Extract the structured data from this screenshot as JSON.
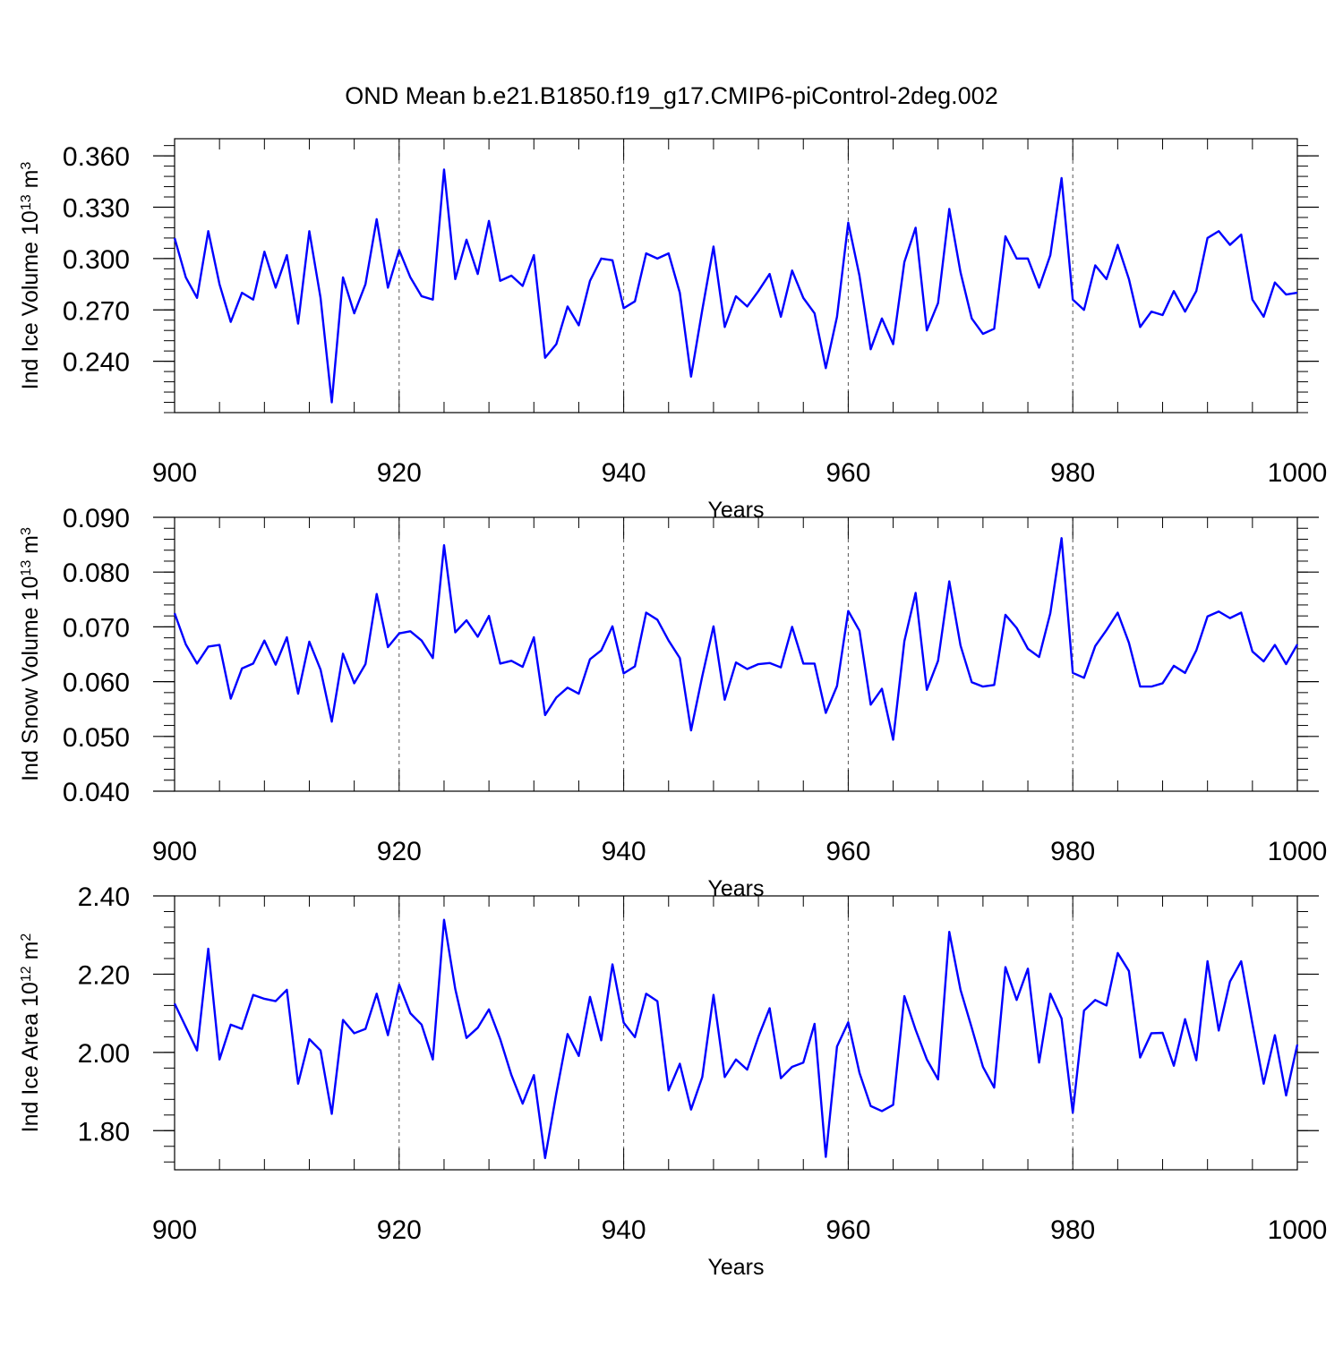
{
  "title": "OND Mean b.e21.B1850.f19_g17.CMIP6-piControl-2deg.002",
  "colors": {
    "line": "#0000ff",
    "axes": "#000000",
    "refline": "#555555"
  },
  "chart_data": [
    {
      "type": "line",
      "xlabel": "Years",
      "ylabel": {
        "base": "Ind Ice Volume 10",
        "exp1": "13",
        "unit": " m",
        "exp2": "3"
      },
      "xlim": [
        900,
        1000
      ],
      "ylim": [
        0.21,
        0.37
      ],
      "xticks": [
        900,
        920,
        940,
        960,
        980,
        1000
      ],
      "xtick_labels": [
        "900",
        "920",
        "940",
        "960",
        "980",
        "1000"
      ],
      "yticks": [
        0.24,
        0.27,
        0.3,
        0.33,
        0.36
      ],
      "ytick_labels": [
        "0.240",
        "0.270",
        "0.300",
        "0.330",
        "0.360"
      ],
      "ref_lines_x": [
        920,
        940,
        960,
        980
      ],
      "x_start": 900,
      "values": [
        0.312,
        0.289,
        0.277,
        0.316,
        0.285,
        0.263,
        0.28,
        0.276,
        0.304,
        0.283,
        0.302,
        0.262,
        0.316,
        0.277,
        0.216,
        0.289,
        0.268,
        0.285,
        0.323,
        0.283,
        0.305,
        0.289,
        0.278,
        0.276,
        0.352,
        0.288,
        0.311,
        0.291,
        0.322,
        0.287,
        0.29,
        0.284,
        0.302,
        0.242,
        0.25,
        0.272,
        0.261,
        0.287,
        0.3,
        0.299,
        0.271,
        0.275,
        0.303,
        0.3,
        0.303,
        0.28,
        0.231,
        0.27,
        0.307,
        0.26,
        0.278,
        0.272,
        0.281,
        0.291,
        0.266,
        0.293,
        0.277,
        0.268,
        0.236,
        0.266,
        0.321,
        0.29,
        0.247,
        0.265,
        0.25,
        0.298,
        0.318,
        0.258,
        0.274,
        0.329,
        0.292,
        0.265,
        0.256,
        0.259,
        0.313,
        0.3,
        0.3,
        0.283,
        0.302,
        0.347,
        0.276,
        0.27,
        0.296,
        0.288,
        0.308,
        0.288,
        0.26,
        0.269,
        0.267,
        0.281,
        0.269,
        0.281,
        0.312,
        0.316,
        0.308,
        0.314,
        0.276,
        0.266,
        0.286,
        0.279,
        0.28
      ]
    },
    {
      "type": "line",
      "xlabel": "Years",
      "ylabel": {
        "base": "Ind Snow Volume 10",
        "exp1": "13",
        "unit": " m",
        "exp2": "3"
      },
      "xlim": [
        900,
        1000
      ],
      "ylim": [
        0.04,
        0.09
      ],
      "xticks": [
        900,
        920,
        940,
        960,
        980,
        1000
      ],
      "xtick_labels": [
        "900",
        "920",
        "940",
        "960",
        "980",
        "1000"
      ],
      "yticks": [
        0.04,
        0.05,
        0.06,
        0.07,
        0.08,
        0.09
      ],
      "ytick_labels": [
        "0.040",
        "0.050",
        "0.060",
        "0.070",
        "0.080",
        "0.090"
      ],
      "ref_lines_x": [
        920,
        940,
        960,
        980
      ],
      "x_start": 900,
      "values": [
        0.0725,
        0.0668,
        0.0633,
        0.0664,
        0.0667,
        0.0569,
        0.0624,
        0.0633,
        0.0675,
        0.0631,
        0.0681,
        0.0578,
        0.0673,
        0.0622,
        0.0527,
        0.0651,
        0.0597,
        0.0632,
        0.076,
        0.0663,
        0.0688,
        0.0692,
        0.0675,
        0.0643,
        0.0849,
        0.069,
        0.0712,
        0.0682,
        0.072,
        0.0633,
        0.0638,
        0.0627,
        0.0681,
        0.0539,
        0.0571,
        0.0589,
        0.0578,
        0.0641,
        0.0657,
        0.0701,
        0.0615,
        0.0628,
        0.0726,
        0.0713,
        0.0675,
        0.0643,
        0.0511,
        0.061,
        0.0701,
        0.0567,
        0.0635,
        0.0623,
        0.0632,
        0.0634,
        0.0626,
        0.07,
        0.0633,
        0.0633,
        0.0543,
        0.0592,
        0.0729,
        0.0693,
        0.0558,
        0.0587,
        0.0494,
        0.0674,
        0.0762,
        0.0585,
        0.0638,
        0.0783,
        0.0666,
        0.0599,
        0.0591,
        0.0594,
        0.0722,
        0.0698,
        0.066,
        0.0645,
        0.0725,
        0.0862,
        0.0616,
        0.0607,
        0.0665,
        0.0694,
        0.0726,
        0.0671,
        0.0591,
        0.0591,
        0.0597,
        0.0629,
        0.0616,
        0.0657,
        0.0719,
        0.0728,
        0.0716,
        0.0726,
        0.0655,
        0.0637,
        0.0667,
        0.0632,
        0.0668
      ]
    },
    {
      "type": "line",
      "xlabel": "Years",
      "ylabel": {
        "base": "Ind Ice Area 10",
        "exp1": "12",
        "unit": " m",
        "exp2": "2"
      },
      "xlim": [
        900,
        1000
      ],
      "ylim": [
        1.7,
        2.4
      ],
      "xticks": [
        900,
        920,
        940,
        960,
        980,
        1000
      ],
      "xtick_labels": [
        "900",
        "920",
        "940",
        "960",
        "980",
        "1000"
      ],
      "yticks": [
        1.8,
        2.0,
        2.2,
        2.4
      ],
      "ytick_labels": [
        "1.80",
        "2.00",
        "2.20",
        "2.40"
      ],
      "ref_lines_x": [
        920,
        940,
        960,
        980
      ],
      "x_start": 900,
      "values": [
        2.125,
        2.065,
        2.005,
        2.265,
        1.982,
        2.071,
        2.06,
        2.147,
        2.137,
        2.131,
        2.16,
        1.92,
        2.034,
        2.005,
        1.843,
        2.083,
        2.049,
        2.06,
        2.15,
        2.044,
        2.173,
        2.1,
        2.071,
        1.982,
        2.339,
        2.162,
        2.037,
        2.063,
        2.11,
        2.034,
        1.942,
        1.869,
        1.942,
        1.73,
        1.895,
        2.047,
        1.991,
        2.142,
        2.031,
        2.225,
        2.076,
        2.039,
        2.15,
        2.131,
        1.903,
        1.971,
        1.854,
        1.937,
        2.147,
        1.937,
        1.982,
        1.956,
        2.04,
        2.113,
        1.934,
        1.963,
        1.974,
        2.073,
        1.733,
        2.015,
        2.077,
        1.948,
        1.863,
        1.85,
        1.866,
        2.144,
        2.058,
        1.982,
        1.931,
        2.308,
        2.16,
        2.063,
        1.963,
        1.91,
        2.218,
        2.134,
        2.214,
        1.974,
        2.15,
        2.087,
        1.846,
        2.107,
        2.134,
        2.12,
        2.254,
        2.208,
        1.987,
        2.049,
        2.05,
        1.966,
        2.085,
        1.98,
        2.233,
        2.056,
        2.181,
        2.233,
        2.073,
        1.92,
        2.044,
        1.89,
        2.02
      ]
    }
  ]
}
